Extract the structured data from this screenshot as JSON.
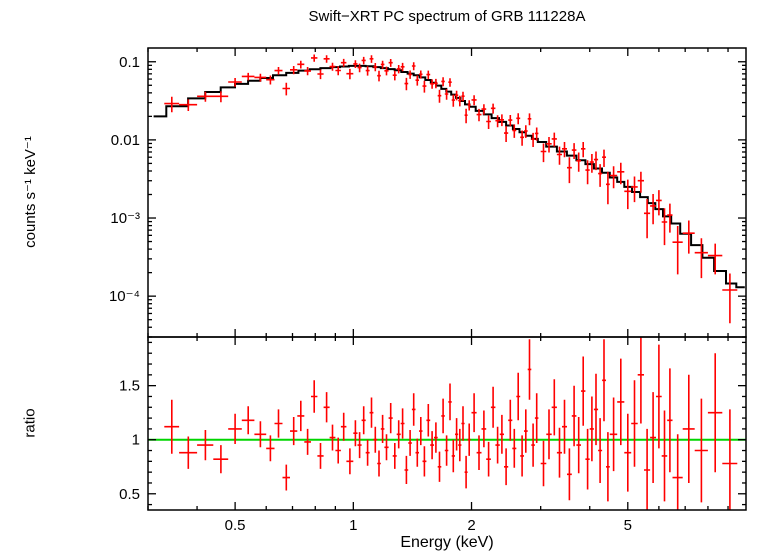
{
  "chart_data": {
    "type": "scatter",
    "title": "Swift−XRT PC spectrum of GRB 111228A",
    "xlabel": "Energy (keV)",
    "xscale": "log",
    "xlim": [
      0.3,
      10
    ],
    "x_ticks": [
      {
        "v": 0.5,
        "label": "0.5"
      },
      {
        "v": 1,
        "label": "1"
      },
      {
        "v": 2,
        "label": "2"
      },
      {
        "v": 5,
        "label": "5"
      }
    ],
    "x_minor_ticks": [
      0.3,
      0.4,
      0.6,
      0.7,
      0.8,
      0.9,
      3,
      4,
      6,
      7,
      8,
      9
    ],
    "colors": {
      "data": "#ff0000",
      "model": "#000000",
      "ratio_line": "#00d500",
      "frame": "#000000",
      "text": "#000000"
    },
    "panels": [
      {
        "name": "spectrum",
        "ylabel": "counts s⁻¹ keV⁻¹",
        "yscale": "log",
        "ylim": [
          3e-05,
          0.15
        ],
        "y_ticks": [
          {
            "v": 0.1,
            "label": "0.1"
          },
          {
            "v": 0.01,
            "label": "0.01"
          },
          {
            "v": 0.001,
            "label": "10⁻³"
          },
          {
            "v": 0.0001,
            "label": "10⁻⁴"
          }
        ],
        "model_step": [
          [
            0.31,
            0.02
          ],
          [
            0.36,
            0.027
          ],
          [
            0.4,
            0.034
          ],
          [
            0.44,
            0.041
          ],
          [
            0.48,
            0.047
          ],
          [
            0.52,
            0.052
          ],
          [
            0.56,
            0.057
          ],
          [
            0.6,
            0.062
          ],
          [
            0.65,
            0.067
          ],
          [
            0.7,
            0.072
          ],
          [
            0.75,
            0.077
          ],
          [
            0.8,
            0.08
          ],
          [
            0.85,
            0.083
          ],
          [
            0.9,
            0.0855
          ],
          [
            0.95,
            0.087
          ],
          [
            1.0,
            0.0885
          ],
          [
            1.05,
            0.0885
          ],
          [
            1.1,
            0.0875
          ],
          [
            1.15,
            0.0855
          ],
          [
            1.2,
            0.083
          ],
          [
            1.25,
            0.0805
          ],
          [
            1.3,
            0.078
          ],
          [
            1.35,
            0.074
          ],
          [
            1.4,
            0.0705
          ],
          [
            1.45,
            0.067
          ],
          [
            1.5,
            0.063
          ],
          [
            1.55,
            0.0585
          ],
          [
            1.6,
            0.054
          ],
          [
            1.65,
            0.0495
          ],
          [
            1.7,
            0.045
          ],
          [
            1.75,
            0.0415
          ],
          [
            1.8,
            0.038
          ],
          [
            1.85,
            0.0345
          ],
          [
            1.9,
            0.0315
          ],
          [
            1.95,
            0.0285
          ],
          [
            2.0,
            0.0265
          ],
          [
            2.1,
            0.0235
          ],
          [
            2.2,
            0.0212
          ],
          [
            2.3,
            0.019
          ],
          [
            2.4,
            0.017
          ],
          [
            2.5,
            0.0153
          ],
          [
            2.6,
            0.0138
          ],
          [
            2.7,
            0.0125
          ],
          [
            2.8,
            0.0113
          ],
          [
            2.9,
            0.0103
          ],
          [
            3.0,
            0.0094
          ],
          [
            3.2,
            0.0082
          ],
          [
            3.4,
            0.0071
          ],
          [
            3.6,
            0.0063
          ],
          [
            3.8,
            0.0055
          ],
          [
            4.0,
            0.0049
          ],
          [
            4.2,
            0.0043
          ],
          [
            4.4,
            0.0038
          ],
          [
            4.6,
            0.0033
          ],
          [
            4.8,
            0.0029
          ],
          [
            5.0,
            0.0025
          ],
          [
            5.25,
            0.00215
          ],
          [
            5.5,
            0.00185
          ],
          [
            5.75,
            0.00155
          ],
          [
            6.0,
            0.0013
          ],
          [
            6.3,
            0.00105
          ],
          [
            6.6,
            0.00085
          ],
          [
            7.0,
            0.00063
          ],
          [
            7.5,
            0.00045
          ],
          [
            8.0,
            0.00031
          ],
          [
            8.6,
            0.00021
          ],
          [
            9.2,
            0.000145
          ],
          [
            9.7,
            0.00013
          ]
        ]
      },
      {
        "name": "ratio",
        "ylabel": "ratio",
        "yscale": "linear",
        "ylim": [
          0.35,
          1.95
        ],
        "y_ticks": [
          {
            "v": 0.5,
            "label": "0.5"
          },
          {
            "v": 1,
            "label": "1"
          },
          {
            "v": 1.5,
            "label": "1.5"
          }
        ],
        "ref_line": 1.0
      }
    ],
    "points_columns": [
      "energy_keV",
      "energy_halfwidth_keV",
      "rate",
      "rate_err",
      "ratio",
      "ratio_err"
    ],
    "points": [
      [
        0.345,
        0.015,
        0.0291,
        0.0065,
        1.12,
        0.25
      ],
      [
        0.38,
        0.02,
        0.0282,
        0.0048,
        0.88,
        0.15
      ],
      [
        0.42,
        0.02,
        0.0361,
        0.0053,
        0.95,
        0.14
      ],
      [
        0.46,
        0.02,
        0.0361,
        0.0057,
        0.82,
        0.13
      ],
      [
        0.5,
        0.02,
        0.055,
        0.007,
        1.1,
        0.14
      ],
      [
        0.54,
        0.02,
        0.0649,
        0.0072,
        1.18,
        0.13
      ],
      [
        0.58,
        0.02,
        0.063,
        0.0072,
        1.05,
        0.12
      ],
      [
        0.615,
        0.015,
        0.0589,
        0.0077,
        0.92,
        0.12
      ],
      [
        0.645,
        0.015,
        0.0771,
        0.0087,
        1.15,
        0.13
      ],
      [
        0.675,
        0.015,
        0.0455,
        0.0084,
        0.65,
        0.12
      ],
      [
        0.705,
        0.015,
        0.0788,
        0.0095,
        1.08,
        0.13
      ],
      [
        0.735,
        0.015,
        0.0927,
        0.0106,
        1.22,
        0.14
      ],
      [
        0.765,
        0.015,
        0.0764,
        0.0094,
        0.98,
        0.12
      ],
      [
        0.795,
        0.015,
        0.112,
        0.012,
        1.4,
        0.15
      ],
      [
        0.825,
        0.015,
        0.0697,
        0.0098,
        0.85,
        0.12
      ],
      [
        0.855,
        0.015,
        0.109,
        0.0118,
        1.3,
        0.14
      ],
      [
        0.885,
        0.015,
        0.0867,
        0.0102,
        1.02,
        0.12
      ],
      [
        0.915,
        0.015,
        0.0774,
        0.0103,
        0.9,
        0.12
      ],
      [
        0.945,
        0.015,
        0.0974,
        0.0113,
        1.12,
        0.13
      ],
      [
        0.98,
        0.02,
        0.0704,
        0.0106,
        0.8,
        0.12
      ],
      [
        1.0125,
        0.0125,
        0.0938,
        0.0106,
        1.06,
        0.12
      ],
      [
        1.0375,
        0.0125,
        0.0841,
        0.0106,
        0.95,
        0.12
      ],
      [
        1.0625,
        0.0125,
        0.104,
        0.0114,
        1.18,
        0.13
      ],
      [
        1.0875,
        0.0125,
        0.077,
        0.0105,
        0.88,
        0.12
      ],
      [
        1.1125,
        0.0125,
        0.109,
        0.0122,
        1.25,
        0.14
      ],
      [
        1.1375,
        0.0125,
        0.086,
        0.0103,
        1.0,
        0.12
      ],
      [
        1.1625,
        0.0125,
        0.0663,
        0.0102,
        0.78,
        0.12
      ],
      [
        1.1875,
        0.0125,
        0.0924,
        0.0109,
        1.1,
        0.13
      ],
      [
        1.215,
        0.015,
        0.0767,
        0.0099,
        0.93,
        0.12
      ],
      [
        1.245,
        0.015,
        0.0972,
        0.0113,
        1.2,
        0.14
      ],
      [
        1.275,
        0.015,
        0.0672,
        0.0095,
        0.85,
        0.12
      ],
      [
        1.305,
        0.015,
        0.0809,
        0.01,
        1.05,
        0.13
      ],
      [
        1.335,
        0.015,
        0.0863,
        0.0105,
        1.15,
        0.14
      ],
      [
        1.365,
        0.015,
        0.0526,
        0.0095,
        0.72,
        0.13
      ],
      [
        1.395,
        0.015,
        0.0689,
        0.0085,
        0.97,
        0.12
      ],
      [
        1.425,
        0.015,
        0.0883,
        0.0104,
        1.28,
        0.15
      ],
      [
        1.455,
        0.015,
        0.0581,
        0.0086,
        0.88,
        0.13
      ],
      [
        1.485,
        0.015,
        0.0691,
        0.0083,
        1.08,
        0.13
      ],
      [
        1.5175,
        0.0175,
        0.0488,
        0.0085,
        0.8,
        0.14
      ],
      [
        1.5525,
        0.0175,
        0.0684,
        0.0087,
        1.18,
        0.15
      ],
      [
        1.5875,
        0.0175,
        0.0523,
        0.0072,
        0.95,
        0.13
      ],
      [
        1.6225,
        0.0175,
        0.053,
        0.0073,
        1.02,
        0.14
      ],
      [
        1.6575,
        0.0175,
        0.0368,
        0.0069,
        0.75,
        0.14
      ],
      [
        1.6925,
        0.0175,
        0.0561,
        0.0074,
        1.22,
        0.16
      ],
      [
        1.7275,
        0.0175,
        0.0387,
        0.006,
        0.9,
        0.14
      ],
      [
        1.7625,
        0.0175,
        0.0547,
        0.0069,
        1.35,
        0.17
      ],
      [
        1.7975,
        0.0175,
        0.0323,
        0.0057,
        0.85,
        0.15
      ],
      [
        1.8325,
        0.0175,
        0.0373,
        0.0053,
        1.05,
        0.15
      ],
      [
        1.8675,
        0.0175,
        0.0318,
        0.005,
        0.95,
        0.15
      ],
      [
        1.9025,
        0.0175,
        0.0362,
        0.005,
        1.15,
        0.16
      ],
      [
        1.9375,
        0.0175,
        0.0207,
        0.0044,
        0.7,
        0.15
      ],
      [
        1.9725,
        0.0175,
        0.028,
        0.0042,
        1.0,
        0.15
      ],
      [
        2.03,
        0.03,
        0.0325,
        0.0047,
        1.25,
        0.18
      ],
      [
        2.09,
        0.03,
        0.0211,
        0.0038,
        0.88,
        0.16
      ],
      [
        2.15,
        0.03,
        0.0248,
        0.0038,
        1.1,
        0.17
      ],
      [
        2.21,
        0.03,
        0.0172,
        0.0034,
        0.82,
        0.16
      ],
      [
        2.27,
        0.03,
        0.0254,
        0.0037,
        1.3,
        0.19
      ],
      [
        2.33,
        0.03,
        0.0176,
        0.0031,
        0.95,
        0.17
      ],
      [
        2.39,
        0.03,
        0.0181,
        0.0031,
        1.05,
        0.18
      ],
      [
        2.45,
        0.03,
        0.0122,
        0.0028,
        0.75,
        0.17
      ],
      [
        2.51,
        0.03,
        0.0179,
        0.0029,
        1.18,
        0.19
      ],
      [
        2.57,
        0.03,
        0.0132,
        0.0026,
        0.92,
        0.18
      ],
      [
        2.63,
        0.03,
        0.0189,
        0.003,
        1.4,
        0.22
      ],
      [
        2.69,
        0.03,
        0.0108,
        0.0024,
        0.85,
        0.19
      ],
      [
        2.75,
        0.03,
        0.013,
        0.0024,
        1.08,
        0.2
      ],
      [
        2.81,
        0.03,
        0.0186,
        0.0032,
        1.65,
        0.28
      ],
      [
        2.87,
        0.03,
        0.0102,
        0.0021,
        0.95,
        0.2
      ],
      [
        2.93,
        0.03,
        0.0121,
        0.0023,
        1.2,
        0.23
      ],
      [
        3.05,
        0.05,
        0.0071,
        0.0019,
        0.78,
        0.21
      ],
      [
        3.15,
        0.05,
        0.0089,
        0.002,
        1.05,
        0.23
      ],
      [
        3.25,
        0.05,
        0.0103,
        0.0021,
        1.3,
        0.26
      ],
      [
        3.35,
        0.05,
        0.0065,
        0.0017,
        0.88,
        0.23
      ],
      [
        3.45,
        0.05,
        0.0077,
        0.0017,
        1.12,
        0.25
      ],
      [
        3.55,
        0.05,
        0.0044,
        0.0016,
        0.68,
        0.24
      ],
      [
        3.65,
        0.05,
        0.0074,
        0.0017,
        1.22,
        0.28
      ],
      [
        3.75,
        0.05,
        0.0054,
        0.0015,
        0.95,
        0.26
      ],
      [
        3.85,
        0.05,
        0.0077,
        0.0017,
        1.45,
        0.32
      ],
      [
        3.95,
        0.05,
        0.0041,
        0.0014,
        0.82,
        0.28
      ],
      [
        4.05,
        0.05,
        0.0052,
        0.0014,
        1.1,
        0.3
      ],
      [
        4.15,
        0.05,
        0.0056,
        0.0015,
        1.28,
        0.33
      ],
      [
        4.25,
        0.05,
        0.0037,
        0.0012,
        0.9,
        0.3
      ],
      [
        4.35,
        0.05,
        0.006,
        0.0015,
        1.55,
        0.38
      ],
      [
        4.45,
        0.05,
        0.0027,
        0.0012,
        0.75,
        0.32
      ],
      [
        4.6,
        0.1,
        0.0035,
        0.0011,
        1.05,
        0.34
      ],
      [
        4.8,
        0.1,
        0.0039,
        0.0012,
        1.35,
        0.4
      ],
      [
        5.0,
        0.1,
        0.0022,
        0.0009,
        0.88,
        0.36
      ],
      [
        5.2,
        0.1,
        0.0025,
        0.0009,
        1.15,
        0.4
      ],
      [
        5.4,
        0.1,
        0.003,
        0.0009,
        1.6,
        0.45
      ],
      [
        5.6,
        0.1,
        0.00115,
        0.0006,
        0.72,
        0.38
      ],
      [
        5.8,
        0.1,
        0.00143,
        0.0006,
        1.02,
        0.42
      ],
      [
        6.0,
        0.1,
        0.00168,
        0.0006,
        1.4,
        0.48
      ],
      [
        6.2,
        0.1,
        0.00089,
        0.00044,
        0.85,
        0.42
      ],
      [
        6.4,
        0.1,
        0.00109,
        0.00044,
        1.18,
        0.48
      ],
      [
        6.7,
        0.2,
        0.00049,
        0.0003,
        0.65,
        0.4
      ],
      [
        7.15,
        0.25,
        0.00064,
        0.00029,
        1.1,
        0.5
      ],
      [
        7.7,
        0.3,
        0.00036,
        0.00019,
        0.9,
        0.48
      ],
      [
        8.35,
        0.35,
        0.00033,
        0.00014,
        1.25,
        0.55
      ],
      [
        9.1,
        0.4,
        0.00012,
        7.5e-05,
        0.78,
        0.5
      ]
    ]
  }
}
